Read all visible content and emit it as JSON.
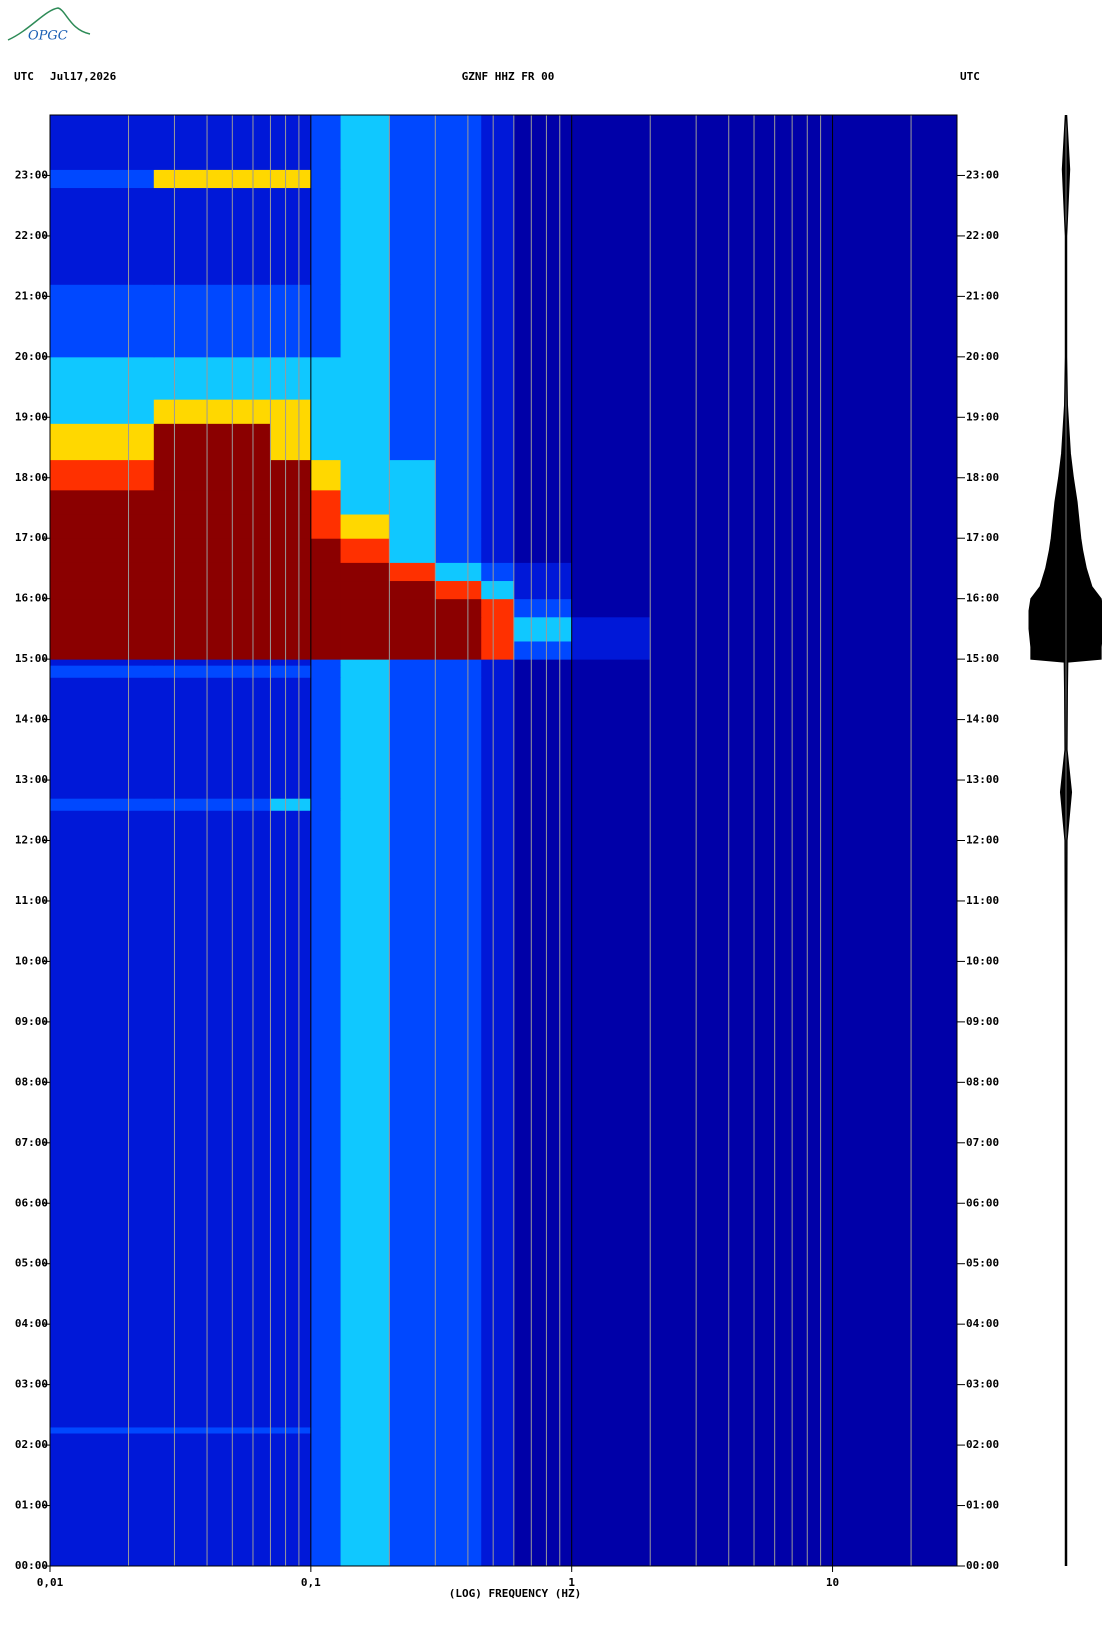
{
  "logo": "OPGC",
  "chart_data": {
    "type": "spectrogram",
    "header_left_zone": "UTC",
    "date": "Jul17,2026",
    "title": "GZNF HHZ FR 00",
    "header_right_zone": "UTC",
    "xlabel": "(LOG) FREQUENCY (HZ)",
    "xscale": "log",
    "xlim": [
      0.01,
      30
    ],
    "xticks": [
      {
        "value": 0.01,
        "label": "0,01"
      },
      {
        "value": 0.1,
        "label": "0,1"
      },
      1,
      10
    ],
    "xgrid": [
      0.02,
      0.03,
      0.04,
      0.05,
      0.06,
      0.07,
      0.08,
      0.09,
      0.2,
      0.3,
      0.4,
      0.5,
      0.6,
      0.7,
      0.8,
      0.9,
      2,
      3,
      4,
      5,
      6,
      7,
      8,
      9,
      20
    ],
    "ylim": [
      0,
      24
    ],
    "yticks": [
      {
        "value": 0,
        "label": "00:00"
      },
      {
        "value": 1,
        "label": "01:00"
      },
      {
        "value": 2,
        "label": "02:00"
      },
      {
        "value": 3,
        "label": "03:00"
      },
      {
        "value": 4,
        "label": "04:00"
      },
      {
        "value": 5,
        "label": "05:00"
      },
      {
        "value": 6,
        "label": "06:00"
      },
      {
        "value": 7,
        "label": "07:00"
      },
      {
        "value": 8,
        "label": "08:00"
      },
      {
        "value": 9,
        "label": "09:00"
      },
      {
        "value": 10,
        "label": "10:00"
      },
      {
        "value": 11,
        "label": "11:00"
      },
      {
        "value": 12,
        "label": "12:00"
      },
      {
        "value": 13,
        "label": "13:00"
      },
      {
        "value": 14,
        "label": "14:00"
      },
      {
        "value": 15,
        "label": "15:00"
      },
      {
        "value": 16,
        "label": "16:00"
      },
      {
        "value": 17,
        "label": "17:00"
      },
      {
        "value": 18,
        "label": "18:00"
      },
      {
        "value": 19,
        "label": "19:00"
      },
      {
        "value": 20,
        "label": "20:00"
      },
      {
        "value": 21,
        "label": "21:00"
      },
      {
        "value": 22,
        "label": "22:00"
      },
      {
        "value": 23,
        "label": "23:00"
      }
    ],
    "colors": [
      "#0000a8",
      "#0018d8",
      "#0048ff",
      "#10c8ff",
      "#ffd800",
      "#ff3000",
      "#8b0000"
    ],
    "freq_bins": [
      0.01,
      0.025,
      0.07,
      0.1,
      0.13,
      0.2,
      0.3,
      0.45,
      0.6,
      1,
      2,
      30
    ],
    "time_bins": [
      0,
      2.2,
      2.3,
      12.5,
      12.7,
      14.7,
      14.9,
      15,
      15.3,
      15.7,
      16,
      16.3,
      16.6,
      17,
      17.4,
      17.8,
      18.3,
      18.9,
      19.3,
      20,
      21.2,
      22.8,
      23.1,
      24
    ],
    "levels": [
      [
        1,
        1,
        1,
        2,
        3,
        2,
        2,
        1,
        0,
        0,
        0
      ],
      [
        2,
        2,
        2,
        2,
        3,
        2,
        2,
        1,
        0,
        0,
        0
      ],
      [
        1,
        1,
        1,
        2,
        3,
        2,
        2,
        1,
        0,
        0,
        0
      ],
      [
        2,
        2,
        3,
        2,
        3,
        2,
        2,
        1,
        0,
        0,
        0
      ],
      [
        1,
        1,
        1,
        2,
        3,
        2,
        2,
        1,
        0,
        0,
        0
      ],
      [
        2,
        2,
        2,
        2,
        3,
        2,
        2,
        1,
        0,
        0,
        0
      ],
      [
        1,
        1,
        1,
        2,
        3,
        2,
        2,
        1,
        0,
        0,
        0
      ],
      [
        6,
        6,
        6,
        6,
        6,
        6,
        6,
        5,
        2,
        1,
        0
      ],
      [
        6,
        6,
        6,
        6,
        6,
        6,
        6,
        5,
        3,
        1,
        0
      ],
      [
        6,
        6,
        6,
        6,
        6,
        6,
        6,
        5,
        2,
        0,
        0
      ],
      [
        6,
        6,
        6,
        6,
        6,
        6,
        5,
        3,
        1,
        0,
        0
      ],
      [
        6,
        6,
        6,
        6,
        6,
        5,
        3,
        2,
        1,
        0,
        0
      ],
      [
        6,
        6,
        6,
        6,
        5,
        3,
        2,
        1,
        0,
        0,
        0
      ],
      [
        6,
        6,
        6,
        5,
        4,
        3,
        2,
        1,
        0,
        0,
        0
      ],
      [
        6,
        6,
        6,
        5,
        3,
        3,
        2,
        1,
        0,
        0,
        0
      ],
      [
        5,
        6,
        6,
        4,
        3,
        3,
        2,
        1,
        0,
        0,
        0
      ],
      [
        4,
        6,
        4,
        3,
        3,
        2,
        2,
        1,
        0,
        0,
        0
      ],
      [
        3,
        4,
        4,
        3,
        3,
        2,
        2,
        1,
        0,
        0,
        0
      ],
      [
        3,
        3,
        3,
        3,
        3,
        2,
        2,
        1,
        0,
        0,
        0
      ],
      [
        2,
        2,
        2,
        2,
        3,
        2,
        2,
        1,
        0,
        0,
        0
      ],
      [
        1,
        1,
        1,
        2,
        3,
        2,
        2,
        1,
        0,
        0,
        0
      ],
      [
        2,
        4,
        4,
        2,
        3,
        2,
        2,
        1,
        0,
        0,
        0
      ],
      [
        1,
        1,
        1,
        2,
        3,
        2,
        2,
        1,
        0,
        0,
        0
      ]
    ],
    "trace": {
      "times": [
        0,
        2,
        4,
        6,
        8,
        10,
        12,
        12.8,
        13.5,
        14.5,
        14.95,
        15,
        15.2,
        15.5,
        15.8,
        16,
        16.2,
        16.5,
        16.8,
        17,
        17.3,
        17.6,
        18,
        18.4,
        18.8,
        19.2,
        20,
        21,
        22,
        23.1,
        24
      ],
      "amplitude": [
        0.02,
        0.02,
        0.02,
        0.02,
        0.02,
        0.02,
        0.03,
        0.15,
        0.03,
        0.04,
        0.05,
        0.95,
        0.95,
        1,
        1,
        0.95,
        0.7,
        0.55,
        0.45,
        0.4,
        0.35,
        0.3,
        0.2,
        0.12,
        0.08,
        0.04,
        0.02,
        0.02,
        0.02,
        0.1,
        0.02
      ]
    }
  }
}
